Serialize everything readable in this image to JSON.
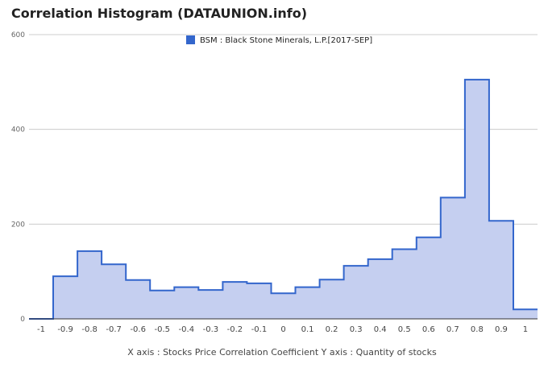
{
  "title": "Correlation Histogram (DATAUNION.info)",
  "colors": {
    "fill": "#c5cff0",
    "line": "#3366cc",
    "grid": "#cccccc",
    "legend_swatch": "#3366cc"
  },
  "chart_data": {
    "type": "area",
    "title": "Correlation Histogram (DATAUNION.info)",
    "xlabel": "X axis : Stocks Price Correlation Coefficient  Y axis : Quantity of stocks",
    "ylabel": "",
    "xlim": [
      -1.05,
      1.05
    ],
    "ylim": [
      0,
      600
    ],
    "yticks": [
      0,
      200,
      400,
      600
    ],
    "xticks": [
      -1,
      -0.9,
      -0.8,
      -0.7,
      -0.6,
      -0.5,
      -0.4,
      -0.3,
      -0.2,
      -0.1,
      0,
      0.1,
      0.2,
      0.3,
      0.4,
      0.5,
      0.6,
      0.7,
      0.8,
      0.9,
      1
    ],
    "xtick_labels": [
      "-1",
      "-0.9",
      "-0.8",
      "-0.7",
      "-0.6",
      "-0.5",
      "-0.4",
      "-0.3",
      "-0.2",
      "-0.1",
      "0",
      "0.1",
      "0.2",
      "0.3",
      "0.4",
      "0.5",
      "0.6",
      "0.7",
      "0.8",
      "0.9",
      "1"
    ],
    "grid": true,
    "legend_position": "top",
    "series": [
      {
        "name": "BSM : Black Stone Minerals, L.P.[2017-SEP]",
        "x": [
          -1,
          -0.9,
          -0.8,
          -0.7,
          -0.6,
          -0.5,
          -0.4,
          -0.3,
          -0.2,
          -0.1,
          0,
          0.1,
          0.2,
          0.3,
          0.4,
          0.5,
          0.6,
          0.7,
          0.8,
          0.9,
          1
        ],
        "values": [
          0,
          90,
          143,
          115,
          82,
          60,
          67,
          61,
          78,
          75,
          54,
          67,
          83,
          112,
          126,
          147,
          172,
          256,
          505,
          207,
          20
        ]
      }
    ]
  }
}
